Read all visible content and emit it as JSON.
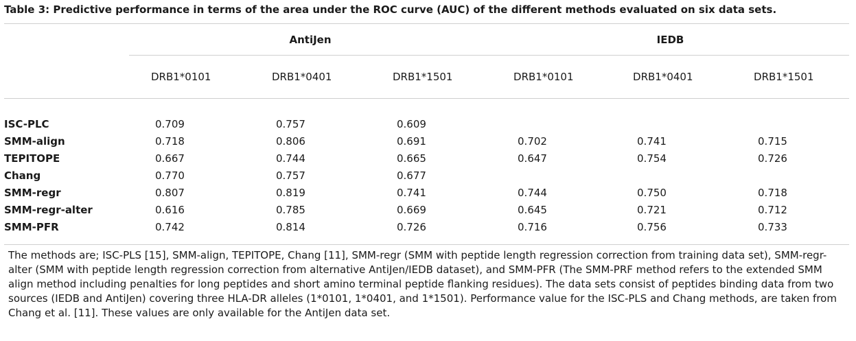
{
  "caption": "Table 3: Predictive performance in terms of the area under the ROC curve (AUC) of the different methods evaluated on six data sets.",
  "groups": [
    "AntiJen",
    "IEDB"
  ],
  "alleles": [
    "DRB1*0101",
    "DRB1*0401",
    "DRB1*1501",
    "DRB1*0101",
    "DRB1*0401",
    "DRB1*1501"
  ],
  "rows": [
    {
      "method": "ISC-PLC",
      "values": [
        "0.709",
        "0.757",
        "0.609",
        "",
        "",
        ""
      ]
    },
    {
      "method": "SMM-align",
      "values": [
        "0.718",
        "0.806",
        "0.691",
        "0.702",
        "0.741",
        "0.715"
      ]
    },
    {
      "method": "TEPITOPE",
      "values": [
        "0.667",
        "0.744",
        "0.665",
        "0.647",
        "0.754",
        "0.726"
      ]
    },
    {
      "method": "Chang",
      "values": [
        "0.770",
        "0.757",
        "0.677",
        "",
        "",
        ""
      ]
    },
    {
      "method": "SMM-regr",
      "values": [
        "0.807",
        "0.819",
        "0.741",
        "0.744",
        "0.750",
        "0.718"
      ]
    },
    {
      "method": "SMM-regr-alter",
      "values": [
        "0.616",
        "0.785",
        "0.669",
        "0.645",
        "0.721",
        "0.712"
      ]
    },
    {
      "method": "SMM-PFR",
      "values": [
        "0.742",
        "0.814",
        "0.726",
        "0.716",
        "0.756",
        "0.733"
      ]
    }
  ],
  "notes": "The methods are; ISC-PLS [15], SMM-align, TEPITOPE, Chang [11], SMM-regr (SMM with peptide length regression correction from training data set), SMM-regr-alter (SMM with peptide length regression correction from alternative AntiJen/IEDB dataset), and SMM-PFR (The SMM-PRF method refers to the extended SMM align method including penalties for long peptides and short amino terminal peptide flanking residues). The data sets consist of peptides binding data from two sources (IEDB and AntiJen) covering three HLA-DR alleles (1*0101, 1*0401, and 1*1501). Performance value for the ISC-PLS and Chang methods, are taken from Chang et al. [11]. These values are only available for the AntiJen data set."
}
